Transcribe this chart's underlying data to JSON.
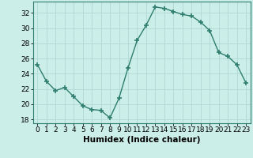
{
  "x": [
    0,
    1,
    2,
    3,
    4,
    5,
    6,
    7,
    8,
    9,
    10,
    11,
    12,
    13,
    14,
    15,
    16,
    17,
    18,
    19,
    20,
    21,
    22,
    23
  ],
  "y": [
    25.2,
    23.0,
    21.8,
    22.2,
    21.0,
    19.8,
    19.3,
    19.2,
    18.2,
    20.8,
    24.8,
    28.4,
    30.4,
    32.8,
    32.6,
    32.2,
    31.8,
    31.6,
    30.8,
    29.7,
    26.8,
    26.3,
    25.2,
    22.8
  ],
  "line_color": "#2e7d6e",
  "marker": "+",
  "marker_size": 4,
  "marker_linewidth": 1.2,
  "bg_color": "#cceee8",
  "grid_color": "#b0d8d2",
  "xlabel": "Humidex (Indice chaleur)",
  "ylim": [
    17.5,
    33.5
  ],
  "xlim": [
    -0.5,
    23.5
  ],
  "yticks": [
    18,
    20,
    22,
    24,
    26,
    28,
    30,
    32
  ],
  "xticks": [
    0,
    1,
    2,
    3,
    4,
    5,
    6,
    7,
    8,
    9,
    10,
    11,
    12,
    13,
    14,
    15,
    16,
    17,
    18,
    19,
    20,
    21,
    22,
    23
  ],
  "xtick_labels": [
    "0",
    "1",
    "2",
    "3",
    "4",
    "5",
    "6",
    "7",
    "8",
    "9",
    "10",
    "11",
    "12",
    "13",
    "14",
    "15",
    "16",
    "17",
    "18",
    "19",
    "20",
    "21",
    "22",
    "23"
  ],
  "xlabel_fontsize": 7.5,
  "tick_fontsize": 6.5,
  "line_width": 1.0
}
